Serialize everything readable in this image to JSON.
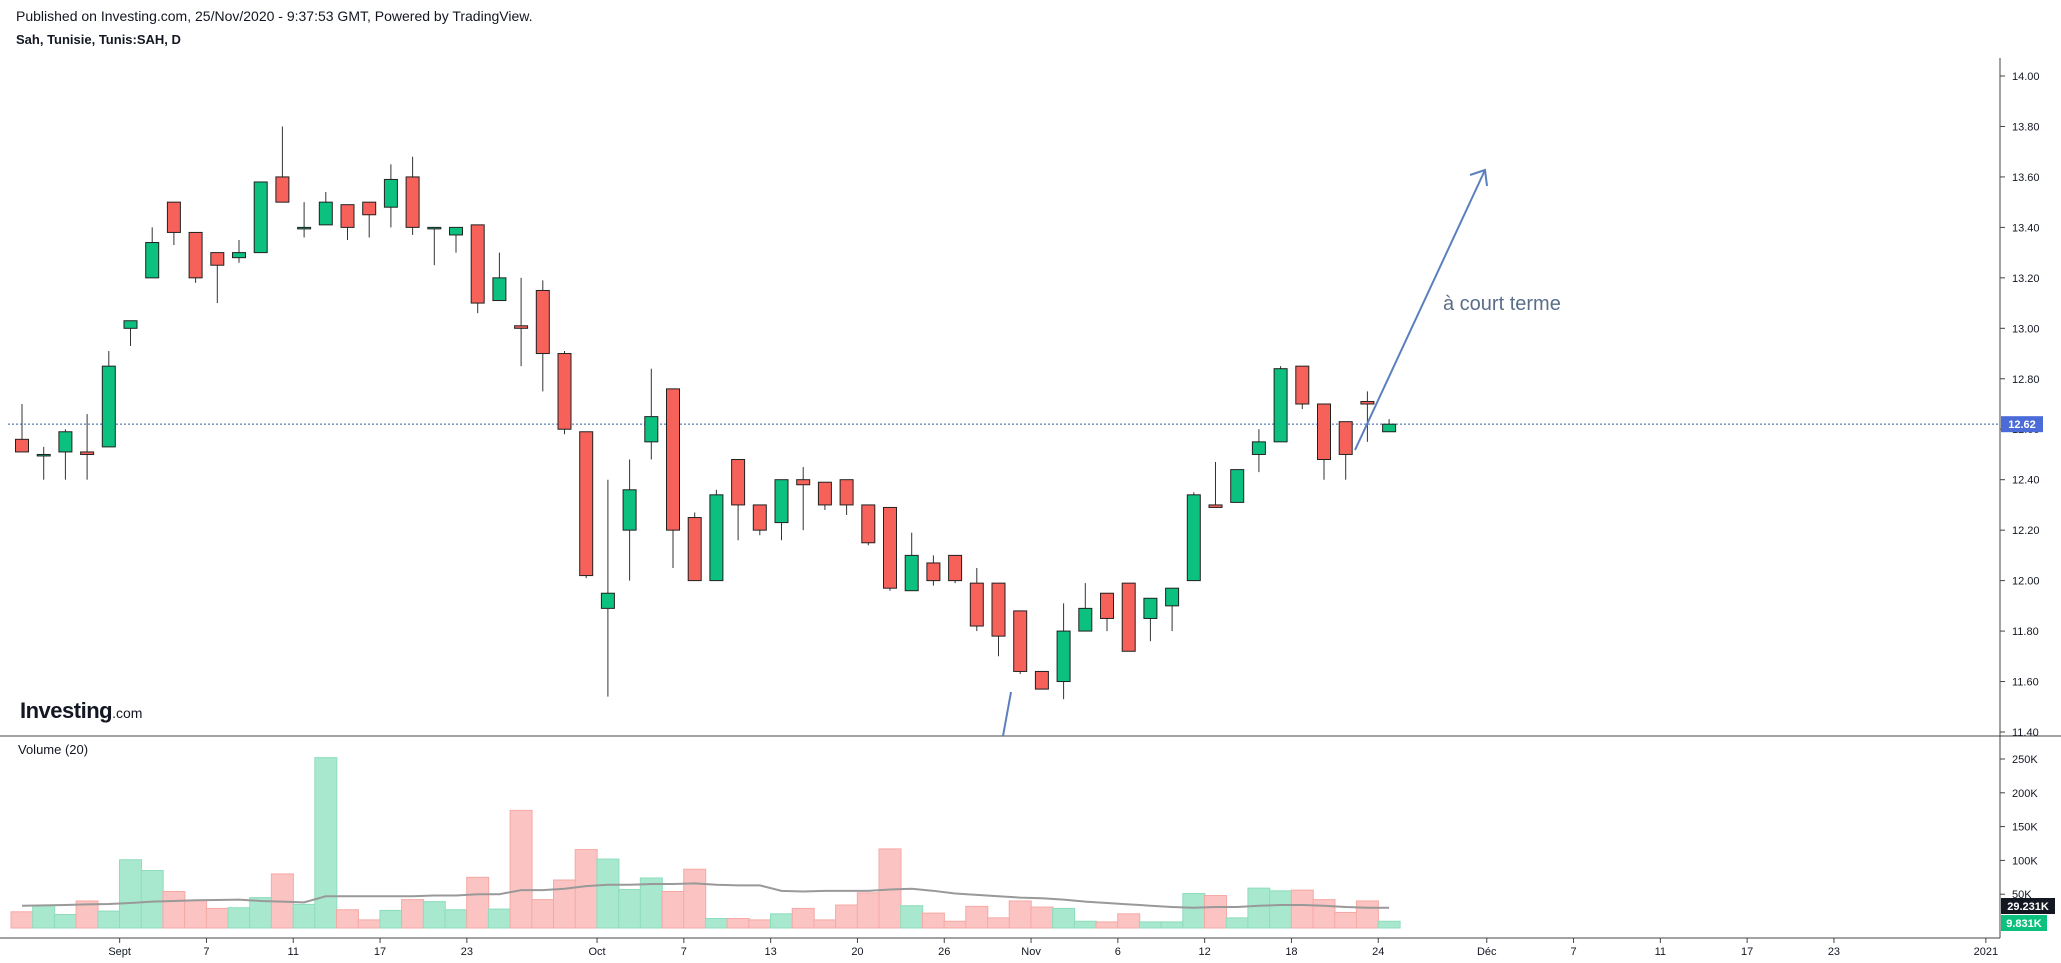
{
  "header": {
    "published": "Published on Investing.com, 25/Nov/2020 - 9:37:53 GMT, Powered by TradingView.",
    "symbol": "Sah, Tunisie, Tunis:SAH, D"
  },
  "logo": {
    "brand": "Investing",
    "domain": ".com"
  },
  "volume_title": "Volume (20)",
  "annotation": "à court terme",
  "price_tag": "12.62",
  "volume_tag": "29.231K",
  "volume_tag2": "9.831K",
  "colors": {
    "up": "#0cc07f",
    "down": "#f6625a",
    "up_vol": "#a7e8cf",
    "down_vol": "#fbc4c2",
    "price_line": "#2a5fa8",
    "price_tag_bg": "#4b6bd8",
    "arrow": "#5b7fbe",
    "ma": "#999999"
  },
  "chart_data": {
    "type": "candlestick",
    "price_axis": {
      "min": 11.4,
      "max": 14.0,
      "ticks": [
        "14.00",
        "13.80",
        "13.60",
        "13.40",
        "13.20",
        "13.00",
        "12.80",
        "12.60",
        "12.40",
        "12.20",
        "12.00",
        "11.80",
        "11.60",
        "11.40"
      ]
    },
    "volume_axis": {
      "max": 250000,
      "ticks": [
        "250K",
        "200K",
        "150K",
        "100K",
        "50K"
      ]
    },
    "x_tick_labels": [
      {
        "label": "Sept",
        "i": 4.5
      },
      {
        "label": "7",
        "i": 8.5
      },
      {
        "label": "11",
        "i": 12.5
      },
      {
        "label": "17",
        "i": 16.5
      },
      {
        "label": "23",
        "i": 20.5
      },
      {
        "label": "Oct",
        "i": 26.5
      },
      {
        "label": "7",
        "i": 30.5
      },
      {
        "label": "13",
        "i": 34.5
      },
      {
        "label": "20",
        "i": 38.5
      },
      {
        "label": "26",
        "i": 42.5
      },
      {
        "label": "Nov",
        "i": 46.5
      },
      {
        "label": "6",
        "i": 50.5
      },
      {
        "label": "12",
        "i": 54.5
      },
      {
        "label": "18",
        "i": 58.5
      },
      {
        "label": "24",
        "i": 62.5
      },
      {
        "label": "Déc",
        "i": 67.5
      },
      {
        "label": "7",
        "i": 71.5
      },
      {
        "label": "11",
        "i": 75.5
      },
      {
        "label": "17",
        "i": 79.5
      },
      {
        "label": "23",
        "i": 83.5
      },
      {
        "label": "2021",
        "i": 90.5
      }
    ],
    "last_price": 12.62,
    "ohlc": [
      {
        "o": 12.56,
        "h": 12.7,
        "l": 12.53,
        "c": 12.51
      },
      {
        "o": 12.5,
        "h": 12.53,
        "l": 12.4,
        "c": 12.5
      },
      {
        "o": 12.51,
        "h": 12.6,
        "l": 12.4,
        "c": 12.59
      },
      {
        "o": 12.51,
        "h": 12.66,
        "l": 12.4,
        "c": 12.5
      },
      {
        "o": 12.53,
        "h": 12.91,
        "l": 12.53,
        "c": 12.85
      },
      {
        "o": 13.0,
        "h": 13.03,
        "l": 12.93,
        "c": 13.03
      },
      {
        "o": 13.2,
        "h": 13.4,
        "l": 13.2,
        "c": 13.34
      },
      {
        "o": 13.5,
        "h": 13.5,
        "l": 13.33,
        "c": 13.38
      },
      {
        "o": 13.38,
        "h": 13.38,
        "l": 13.18,
        "c": 13.2
      },
      {
        "o": 13.3,
        "h": 13.3,
        "l": 13.1,
        "c": 13.25
      },
      {
        "o": 13.28,
        "h": 13.35,
        "l": 13.26,
        "c": 13.3
      },
      {
        "o": 13.3,
        "h": 13.58,
        "l": 13.3,
        "c": 13.58
      },
      {
        "o": 13.6,
        "h": 13.8,
        "l": 13.5,
        "c": 13.5
      },
      {
        "o": 13.4,
        "h": 13.5,
        "l": 13.36,
        "c": 13.4
      },
      {
        "o": 13.41,
        "h": 13.54,
        "l": 13.41,
        "c": 13.5
      },
      {
        "o": 13.49,
        "h": 13.49,
        "l": 13.35,
        "c": 13.4
      },
      {
        "o": 13.5,
        "h": 13.5,
        "l": 13.36,
        "c": 13.45
      },
      {
        "o": 13.48,
        "h": 13.65,
        "l": 13.4,
        "c": 13.59
      },
      {
        "o": 13.6,
        "h": 13.68,
        "l": 13.37,
        "c": 13.4
      },
      {
        "o": 13.4,
        "h": 13.4,
        "l": 13.25,
        "c": 13.4
      },
      {
        "o": 13.37,
        "h": 13.4,
        "l": 13.3,
        "c": 13.4
      },
      {
        "o": 13.41,
        "h": 13.41,
        "l": 13.06,
        "c": 13.1
      },
      {
        "o": 13.11,
        "h": 13.3,
        "l": 13.11,
        "c": 13.2
      },
      {
        "o": 13.01,
        "h": 13.2,
        "l": 12.85,
        "c": 13.0
      },
      {
        "o": 13.15,
        "h": 13.19,
        "l": 12.75,
        "c": 12.9
      },
      {
        "o": 12.9,
        "h": 12.91,
        "l": 12.58,
        "c": 12.6
      },
      {
        "o": 12.59,
        "h": 12.59,
        "l": 12.01,
        "c": 12.02
      },
      {
        "o": 11.89,
        "h": 12.4,
        "l": 11.54,
        "c": 11.95
      },
      {
        "o": 12.2,
        "h": 12.48,
        "l": 12.0,
        "c": 12.36
      },
      {
        "o": 12.55,
        "h": 12.84,
        "l": 12.48,
        "c": 12.65
      },
      {
        "o": 12.76,
        "h": 12.76,
        "l": 12.05,
        "c": 12.2
      },
      {
        "o": 12.25,
        "h": 12.27,
        "l": 12.0,
        "c": 12.0
      },
      {
        "o": 12.0,
        "h": 12.36,
        "l": 12.0,
        "c": 12.34
      },
      {
        "o": 12.48,
        "h": 12.48,
        "l": 12.16,
        "c": 12.3
      },
      {
        "o": 12.3,
        "h": 12.3,
        "l": 12.18,
        "c": 12.2
      },
      {
        "o": 12.23,
        "h": 12.4,
        "l": 12.16,
        "c": 12.4
      },
      {
        "o": 12.4,
        "h": 12.45,
        "l": 12.2,
        "c": 12.38
      },
      {
        "o": 12.39,
        "h": 12.39,
        "l": 12.28,
        "c": 12.3
      },
      {
        "o": 12.4,
        "h": 12.4,
        "l": 12.26,
        "c": 12.3
      },
      {
        "o": 12.3,
        "h": 12.3,
        "l": 12.14,
        "c": 12.15
      },
      {
        "o": 12.29,
        "h": 12.29,
        "l": 11.96,
        "c": 11.97
      },
      {
        "o": 11.96,
        "h": 12.19,
        "l": 11.96,
        "c": 12.1
      },
      {
        "o": 12.07,
        "h": 12.1,
        "l": 11.98,
        "c": 12.0
      },
      {
        "o": 12.1,
        "h": 12.1,
        "l": 11.99,
        "c": 12.0
      },
      {
        "o": 11.99,
        "h": 12.05,
        "l": 11.8,
        "c": 11.82
      },
      {
        "o": 11.99,
        "h": 11.99,
        "l": 11.7,
        "c": 11.78
      },
      {
        "o": 11.88,
        "h": 11.88,
        "l": 11.63,
        "c": 11.64
      },
      {
        "o": 11.64,
        "h": 11.64,
        "l": 11.57,
        "c": 11.57
      },
      {
        "o": 11.6,
        "h": 11.91,
        "l": 11.53,
        "c": 11.8
      },
      {
        "o": 11.8,
        "h": 11.99,
        "l": 11.8,
        "c": 11.89
      },
      {
        "o": 11.95,
        "h": 11.95,
        "l": 11.8,
        "c": 11.85
      },
      {
        "o": 11.99,
        "h": 11.99,
        "l": 11.72,
        "c": 11.72
      },
      {
        "o": 11.85,
        "h": 11.93,
        "l": 11.76,
        "c": 11.93
      },
      {
        "o": 11.9,
        "h": 11.97,
        "l": 11.8,
        "c": 11.97
      },
      {
        "o": 12.0,
        "h": 12.35,
        "l": 12.0,
        "c": 12.34
      },
      {
        "o": 12.3,
        "h": 12.47,
        "l": 12.29,
        "c": 12.29
      },
      {
        "o": 12.31,
        "h": 12.44,
        "l": 12.31,
        "c": 12.44
      },
      {
        "o": 12.5,
        "h": 12.6,
        "l": 12.43,
        "c": 12.55
      },
      {
        "o": 12.55,
        "h": 12.85,
        "l": 12.55,
        "c": 12.84
      },
      {
        "o": 12.85,
        "h": 12.85,
        "l": 12.68,
        "c": 12.7
      },
      {
        "o": 12.7,
        "h": 12.7,
        "l": 12.4,
        "c": 12.48
      },
      {
        "o": 12.63,
        "h": 12.63,
        "l": 12.4,
        "c": 12.5
      },
      {
        "o": 12.71,
        "h": 12.75,
        "l": 12.55,
        "c": 12.7
      },
      {
        "o": 12.59,
        "h": 12.64,
        "l": 12.59,
        "c": 12.62
      }
    ],
    "volume": [
      24000,
      33000,
      20000,
      40000,
      25000,
      101000,
      85000,
      54000,
      41000,
      29000,
      30000,
      45000,
      80000,
      35000,
      252000,
      27000,
      12000,
      26000,
      42000,
      39000,
      27000,
      75000,
      28000,
      174000,
      42000,
      71000,
      116000,
      102000,
      57000,
      74000,
      54000,
      87000,
      14000,
      14000,
      12000,
      21000,
      29000,
      12000,
      34000,
      52000,
      117000,
      33000,
      22000,
      10000,
      32000,
      15000,
      40000,
      31000,
      29000,
      10000,
      9000,
      21000,
      9000,
      9000,
      51000,
      48000,
      15000,
      59000,
      55000,
      56000,
      42000,
      23000,
      40000,
      10000
    ],
    "volume_ma": [
      33000,
      33500,
      34000,
      35000,
      35500,
      37000,
      39000,
      40000,
      41000,
      41500,
      42000,
      40000,
      39000,
      38000,
      47000,
      47000,
      47000,
      47000,
      47000,
      48000,
      48000,
      50000,
      50000,
      56000,
      56000,
      58000,
      62000,
      64000,
      64000,
      65000,
      65000,
      66000,
      64000,
      63000,
      63000,
      55000,
      54000,
      55000,
      55000,
      55000,
      57000,
      58000,
      55000,
      51000,
      49000,
      47000,
      45000,
      44000,
      42000,
      39000,
      37000,
      35000,
      33000,
      31000,
      30000,
      31000,
      31000,
      33000,
      34000,
      34000,
      33000,
      31000,
      30000,
      30000
    ]
  }
}
